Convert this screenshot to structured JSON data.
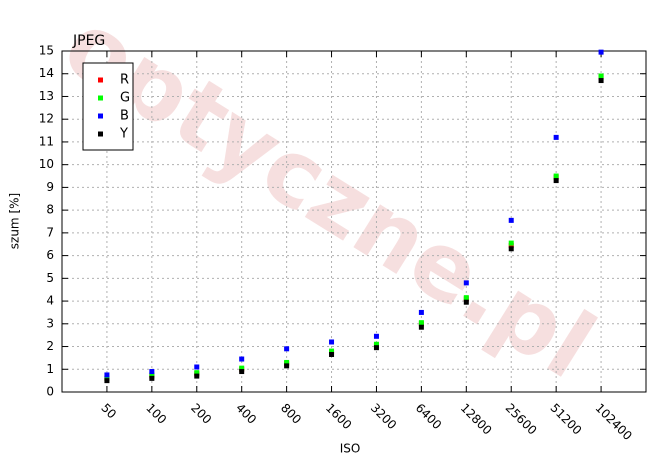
{
  "chart_data": {
    "type": "scatter",
    "title": "JPEG",
    "watermark": "optyczne.pl",
    "xlabel": "ISO",
    "ylabel": "szum [%]",
    "categories": [
      "50",
      "100",
      "200",
      "400",
      "800",
      "1600",
      "3200",
      "6400",
      "12800",
      "25600",
      "51200",
      "102400"
    ],
    "series": [
      {
        "name": "R",
        "color": "#ff0000",
        "values": [
          0.6,
          0.7,
          0.8,
          1.0,
          1.25,
          1.75,
          2.05,
          3.0,
          4.1,
          6.45,
          9.45,
          13.85
        ]
      },
      {
        "name": "G",
        "color": "#00ff00",
        "values": [
          0.6,
          0.75,
          0.85,
          1.05,
          1.3,
          1.8,
          2.1,
          3.05,
          4.15,
          6.55,
          9.5,
          13.9
        ]
      },
      {
        "name": "B",
        "color": "#0000ff",
        "values": [
          0.75,
          0.9,
          1.1,
          1.45,
          1.9,
          2.2,
          2.45,
          3.5,
          4.8,
          7.55,
          11.2,
          14.95
        ]
      },
      {
        "name": "Y",
        "color": "#000000",
        "values": [
          0.5,
          0.6,
          0.7,
          0.9,
          1.15,
          1.65,
          1.95,
          2.85,
          3.95,
          6.3,
          9.3,
          13.7
        ]
      }
    ],
    "ylim": [
      0,
      15
    ],
    "yticks": [
      0,
      1,
      2,
      3,
      4,
      5,
      6,
      7,
      8,
      9,
      10,
      11,
      12,
      13,
      14,
      15
    ],
    "grid": true,
    "legend": "top-left"
  }
}
